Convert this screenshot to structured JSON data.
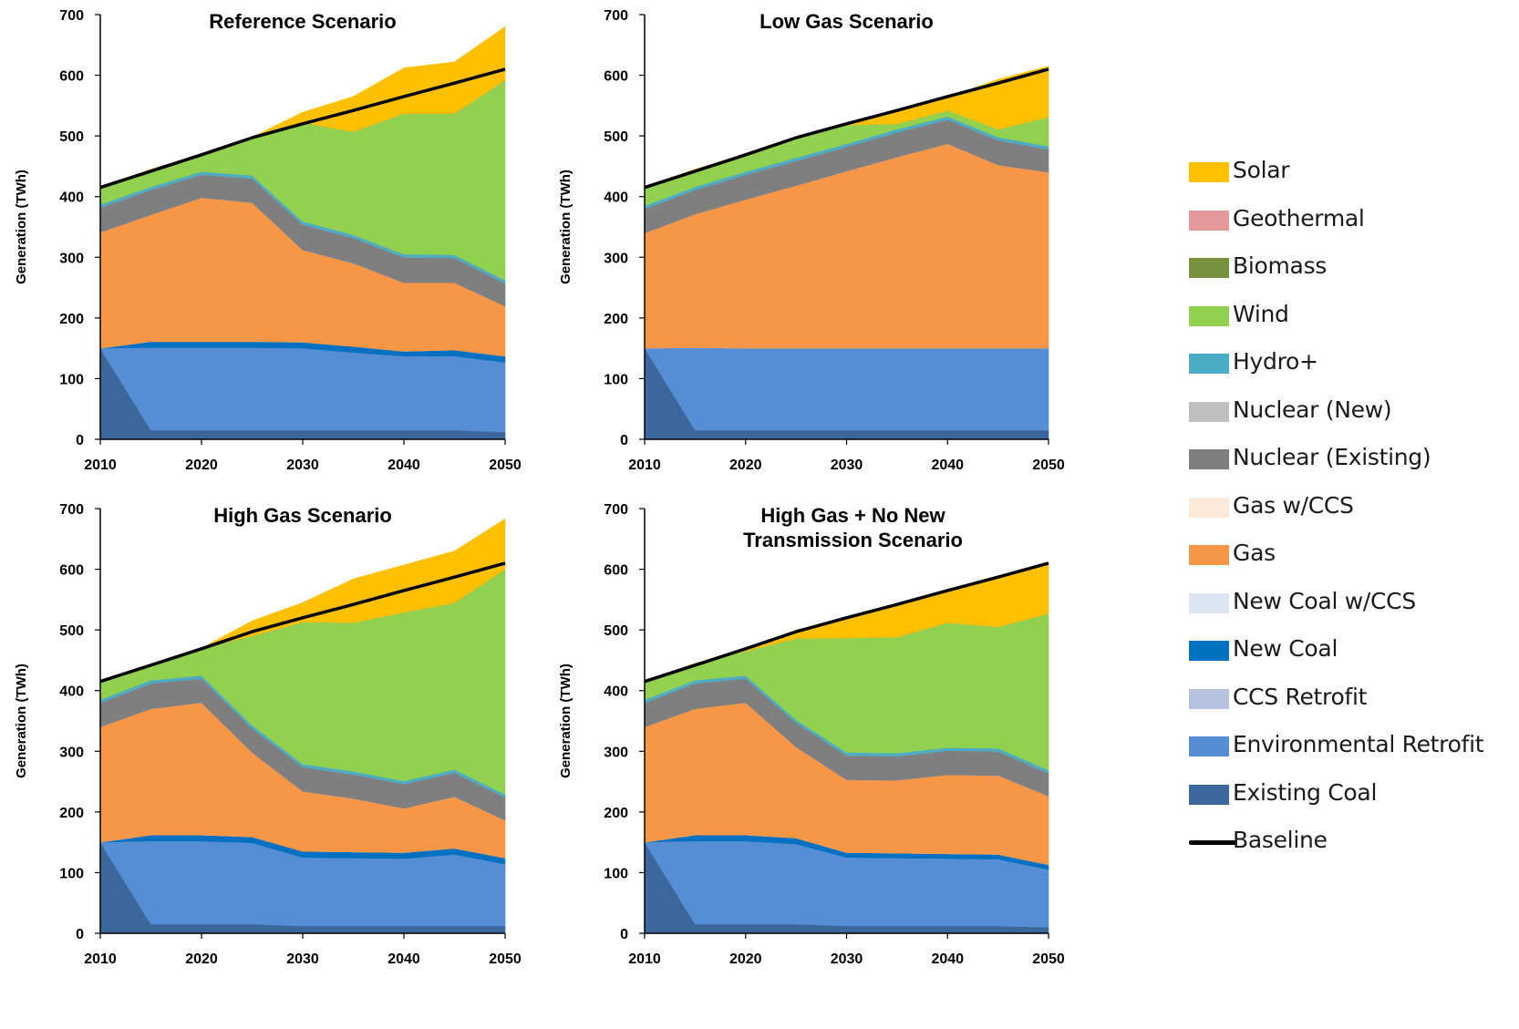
{
  "chart_data": [
    {
      "type": "area",
      "stacked": true,
      "title": "Reference Scenario",
      "ylabel": "Generation (TWh)",
      "xlabel": "",
      "ylim": [
        0,
        700
      ],
      "yticks": [
        0,
        100,
        200,
        300,
        400,
        500,
        600,
        700
      ],
      "xticks": [
        2010,
        2020,
        2030,
        2040,
        2050
      ],
      "x": [
        2010,
        2015,
        2020,
        2025,
        2030,
        2035,
        2040,
        2045,
        2050
      ],
      "series": [
        {
          "name": "Existing Coal",
          "values": [
            150,
            15,
            15,
            15,
            15,
            15,
            15,
            15,
            12
          ]
        },
        {
          "name": "Environmental Retrofit",
          "values": [
            0,
            136,
            136,
            136,
            135,
            128,
            122,
            122,
            115
          ]
        },
        {
          "name": "CCS Retrofit",
          "values": [
            0,
            0,
            0,
            0,
            0,
            0,
            0,
            0,
            0
          ]
        },
        {
          "name": "New Coal",
          "values": [
            0,
            10,
            10,
            10,
            10,
            10,
            8,
            10,
            10
          ]
        },
        {
          "name": "New Coal w/CCS",
          "values": [
            0,
            0,
            0,
            0,
            0,
            0,
            0,
            0,
            0
          ]
        },
        {
          "name": "Gas",
          "values": [
            191,
            209,
            237,
            229,
            152,
            137,
            113,
            111,
            82
          ]
        },
        {
          "name": "Gas w/CCS",
          "values": [
            0,
            0,
            0,
            0,
            0,
            0,
            0,
            0,
            0
          ]
        },
        {
          "name": "Nuclear (Existing)",
          "values": [
            41,
            41,
            38,
            40,
            42,
            42,
            42,
            41,
            38
          ]
        },
        {
          "name": "Nuclear (New)",
          "values": [
            0,
            0,
            0,
            0,
            0,
            0,
            0,
            0,
            0
          ]
        },
        {
          "name": "Hydro+",
          "values": [
            5,
            5,
            5,
            5,
            5,
            5,
            5,
            5,
            5
          ]
        },
        {
          "name": "Wind",
          "values": [
            28,
            29,
            29,
            63,
            163,
            170,
            232,
            233,
            330
          ]
        },
        {
          "name": "Biomass",
          "values": [
            0,
            0,
            0,
            0,
            0,
            0,
            0,
            0,
            0
          ]
        },
        {
          "name": "Geothermal",
          "values": [
            0,
            0,
            0,
            0,
            0,
            0,
            0,
            0,
            0
          ]
        },
        {
          "name": "Solar",
          "values": [
            0,
            0,
            0,
            0,
            17,
            58,
            75,
            85,
            88
          ]
        }
      ],
      "baseline": [
        415,
        442,
        469,
        497,
        520,
        542,
        565,
        587,
        610
      ]
    },
    {
      "type": "area",
      "stacked": true,
      "title": "Low Gas Scenario",
      "ylabel": "Generation (TWh)",
      "xlabel": "",
      "ylim": [
        0,
        700
      ],
      "yticks": [
        0,
        100,
        200,
        300,
        400,
        500,
        600,
        700
      ],
      "xticks": [
        2010,
        2020,
        2030,
        2040,
        2050
      ],
      "x": [
        2010,
        2015,
        2020,
        2025,
        2030,
        2035,
        2040,
        2045,
        2050
      ],
      "series": [
        {
          "name": "Existing Coal",
          "values": [
            150,
            15,
            15,
            15,
            15,
            15,
            15,
            15,
            15
          ]
        },
        {
          "name": "Environmental Retrofit",
          "values": [
            0,
            136,
            135,
            135,
            135,
            135,
            135,
            135,
            135
          ]
        },
        {
          "name": "CCS Retrofit",
          "values": [
            0,
            0,
            0,
            0,
            0,
            0,
            0,
            0,
            0
          ]
        },
        {
          "name": "New Coal",
          "values": [
            0,
            0,
            0,
            0,
            0,
            0,
            0,
            0,
            0
          ]
        },
        {
          "name": "New Coal w/CCS",
          "values": [
            0,
            0,
            0,
            0,
            0,
            0,
            0,
            0,
            0
          ]
        },
        {
          "name": "Gas",
          "values": [
            190,
            220,
            245,
            268,
            292,
            315,
            337,
            302,
            290
          ]
        },
        {
          "name": "Gas w/CCS",
          "values": [
            0,
            0,
            0,
            0,
            0,
            0,
            0,
            0,
            0
          ]
        },
        {
          "name": "Nuclear (Existing)",
          "values": [
            40,
            40,
            41,
            41,
            40,
            41,
            40,
            41,
            38
          ]
        },
        {
          "name": "Nuclear (New)",
          "values": [
            0,
            0,
            0,
            0,
            0,
            0,
            0,
            0,
            0
          ]
        },
        {
          "name": "Hydro+",
          "values": [
            5,
            5,
            5,
            5,
            5,
            5,
            5,
            5,
            5
          ]
        },
        {
          "name": "Wind",
          "values": [
            30,
            29,
            28,
            34,
            31,
            9,
            10,
            13,
            48
          ]
        },
        {
          "name": "Biomass",
          "values": [
            0,
            0,
            0,
            0,
            0,
            0,
            0,
            0,
            0
          ]
        },
        {
          "name": "Geothermal",
          "values": [
            0,
            0,
            0,
            0,
            0,
            0,
            0,
            0,
            0
          ]
        },
        {
          "name": "Solar",
          "values": [
            0,
            0,
            0,
            0,
            2,
            20,
            22,
            82,
            84
          ]
        }
      ],
      "baseline": [
        415,
        442,
        469,
        497,
        520,
        542,
        565,
        587,
        610
      ]
    },
    {
      "type": "area",
      "stacked": true,
      "title": "High Gas Scenario",
      "ylabel": "Generation (TWh)",
      "xlabel": "",
      "ylim": [
        0,
        700
      ],
      "yticks": [
        0,
        100,
        200,
        300,
        400,
        500,
        600,
        700
      ],
      "xticks": [
        2010,
        2020,
        2030,
        2040,
        2050
      ],
      "x": [
        2010,
        2015,
        2020,
        2025,
        2030,
        2035,
        2040,
        2045,
        2050
      ],
      "series": [
        {
          "name": "Existing Coal",
          "values": [
            150,
            15,
            15,
            15,
            12,
            12,
            12,
            12,
            12
          ]
        },
        {
          "name": "Environmental Retrofit",
          "values": [
            0,
            137,
            137,
            134,
            113,
            112,
            111,
            118,
            102
          ]
        },
        {
          "name": "CCS Retrofit",
          "values": [
            0,
            0,
            0,
            0,
            0,
            0,
            0,
            0,
            0
          ]
        },
        {
          "name": "New Coal",
          "values": [
            0,
            10,
            10,
            10,
            10,
            10,
            10,
            10,
            10
          ]
        },
        {
          "name": "New Coal w/CCS",
          "values": [
            0,
            0,
            0,
            0,
            0,
            0,
            0,
            0,
            0
          ]
        },
        {
          "name": "Gas",
          "values": [
            190,
            208,
            218,
            139,
            99,
            88,
            73,
            85,
            62
          ]
        },
        {
          "name": "Gas w/CCS",
          "values": [
            0,
            0,
            0,
            0,
            0,
            0,
            0,
            0,
            0
          ]
        },
        {
          "name": "Nuclear (Existing)",
          "values": [
            40,
            42,
            40,
            40,
            40,
            40,
            40,
            40,
            38
          ]
        },
        {
          "name": "Nuclear (New)",
          "values": [
            0,
            0,
            0,
            0,
            0,
            0,
            0,
            0,
            0
          ]
        },
        {
          "name": "Hydro+",
          "values": [
            5,
            5,
            5,
            5,
            5,
            5,
            5,
            5,
            5
          ]
        },
        {
          "name": "Wind",
          "values": [
            28,
            27,
            45,
            147,
            234,
            245,
            278,
            275,
            371
          ]
        },
        {
          "name": "Biomass",
          "values": [
            0,
            0,
            0,
            0,
            0,
            0,
            0,
            0,
            0
          ]
        },
        {
          "name": "Geothermal",
          "values": [
            0,
            0,
            0,
            0,
            0,
            0,
            0,
            0,
            0
          ]
        },
        {
          "name": "Solar",
          "values": [
            0,
            0,
            0,
            25,
            32,
            72,
            78,
            85,
            83
          ]
        }
      ],
      "baseline": [
        415,
        442,
        469,
        497,
        520,
        542,
        565,
        587,
        610
      ]
    },
    {
      "type": "area",
      "stacked": true,
      "title": "High Gas + No New Transmission Scenario",
      "title_lines": [
        "High Gas + No New",
        "Transmission Scenario"
      ],
      "ylabel": "Generation (TWh)",
      "xlabel": "",
      "ylim": [
        0,
        700
      ],
      "yticks": [
        0,
        100,
        200,
        300,
        400,
        500,
        600,
        700
      ],
      "xticks": [
        2010,
        2020,
        2030,
        2040,
        2050
      ],
      "x": [
        2010,
        2015,
        2020,
        2025,
        2030,
        2035,
        2040,
        2045,
        2050
      ],
      "series": [
        {
          "name": "Existing Coal",
          "values": [
            150,
            15,
            15,
            15,
            12,
            12,
            12,
            12,
            10
          ]
        },
        {
          "name": "Environmental Retrofit",
          "values": [
            0,
            137,
            137,
            132,
            113,
            112,
            111,
            110,
            95
          ]
        },
        {
          "name": "CCS Retrofit",
          "values": [
            0,
            0,
            0,
            0,
            0,
            0,
            0,
            0,
            0
          ]
        },
        {
          "name": "New Coal",
          "values": [
            0,
            10,
            10,
            10,
            8,
            8,
            8,
            8,
            8
          ]
        },
        {
          "name": "New Coal w/CCS",
          "values": [
            0,
            0,
            0,
            0,
            0,
            0,
            0,
            0,
            0
          ]
        },
        {
          "name": "Gas",
          "values": [
            190,
            208,
            218,
            150,
            120,
            120,
            130,
            130,
            113
          ]
        },
        {
          "name": "Gas w/CCS",
          "values": [
            0,
            0,
            0,
            0,
            0,
            0,
            0,
            0,
            0
          ]
        },
        {
          "name": "Nuclear (Existing)",
          "values": [
            40,
            42,
            40,
            40,
            40,
            40,
            40,
            40,
            38
          ]
        },
        {
          "name": "Nuclear (New)",
          "values": [
            0,
            0,
            0,
            0,
            0,
            0,
            0,
            0,
            0
          ]
        },
        {
          "name": "Hydro+",
          "values": [
            5,
            5,
            5,
            5,
            5,
            5,
            5,
            5,
            5
          ]
        },
        {
          "name": "Wind",
          "values": [
            30,
            28,
            40,
            134,
            189,
            191,
            206,
            200,
            258
          ]
        },
        {
          "name": "Biomass",
          "values": [
            0,
            0,
            0,
            0,
            0,
            0,
            0,
            0,
            0
          ]
        },
        {
          "name": "Geothermal",
          "values": [
            0,
            0,
            0,
            0,
            0,
            0,
            0,
            0,
            0
          ]
        },
        {
          "name": "Solar",
          "values": [
            0,
            0,
            0,
            14,
            33,
            54,
            53,
            82,
            83
          ]
        }
      ],
      "baseline": [
        415,
        442,
        469,
        497,
        520,
        542,
        565,
        587,
        610
      ]
    }
  ],
  "legend": {
    "placement": "right",
    "items": [
      {
        "name": "Solar",
        "color": "#ffc000",
        "kind": "area"
      },
      {
        "name": "Geothermal",
        "color": "#e6999b",
        "kind": "area"
      },
      {
        "name": "Biomass",
        "color": "#76923c",
        "kind": "area"
      },
      {
        "name": "Wind",
        "color": "#92d050",
        "kind": "area"
      },
      {
        "name": "Hydro+",
        "color": "#4bacc6",
        "kind": "area"
      },
      {
        "name": "Nuclear (New)",
        "color": "#bfbfbf",
        "kind": "area"
      },
      {
        "name": "Nuclear (Existing)",
        "color": "#7f7f7f",
        "kind": "area"
      },
      {
        "name": "Gas w/CCS",
        "color": "#fde9d9",
        "kind": "area"
      },
      {
        "name": "Gas",
        "color": "#f79646",
        "kind": "area"
      },
      {
        "name": "New Coal w/CCS",
        "color": "#dbe5f1",
        "kind": "area"
      },
      {
        "name": "New Coal",
        "color": "#0070c0",
        "kind": "area"
      },
      {
        "name": "CCS Retrofit",
        "color": "#b4c2e0",
        "kind": "area"
      },
      {
        "name": "Environmental Retrofit",
        "color": "#558ed5",
        "kind": "area"
      },
      {
        "name": "Existing Coal",
        "color": "#3c679c",
        "kind": "area"
      },
      {
        "name": "Baseline",
        "color": "#000000",
        "kind": "line"
      }
    ]
  }
}
